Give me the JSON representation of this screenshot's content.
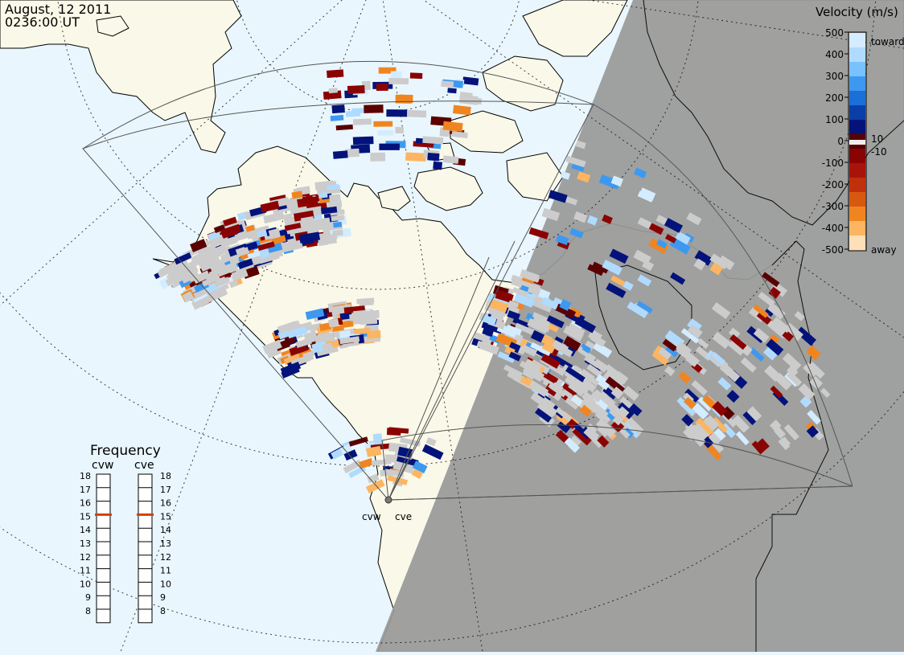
{
  "header": {
    "date": "August, 12 2011",
    "time": "0236:00 UT"
  },
  "colors": {
    "ocean_day": "#e9f6fd",
    "land_day": "#faf8e8",
    "night": "#999999",
    "ground_scatter": "#cccccc",
    "fov_outline": "#555555"
  },
  "velocity_scale": {
    "title": "Velocity (m/s)",
    "tick_labels": [
      "500",
      "400",
      "300",
      "200",
      "100",
      "0",
      "-100",
      "-200",
      "-300",
      "-400",
      "-500"
    ],
    "small_labels": [
      "10",
      "-10"
    ],
    "toward_label": "toward",
    "away_label": "away",
    "colors": [
      "#d4ecff",
      "#b0dbff",
      "#78c2ff",
      "#3d99f0",
      "#1b6fd8",
      "#0b3fa8",
      "#03137a",
      "#5a0000",
      "#8a0303",
      "#a8140a",
      "#c0300a",
      "#d85810",
      "#f08520",
      "#fcb560",
      "#fddfb8"
    ]
  },
  "frequency_panel": {
    "title": "Frequency",
    "radars": [
      {
        "name": "cvw",
        "selected": "15"
      },
      {
        "name": "cve",
        "selected": "15"
      }
    ],
    "levels": [
      "18",
      "17",
      "16",
      "15",
      "14",
      "13",
      "12",
      "11",
      "10",
      "9",
      "8"
    ]
  },
  "radar_sites": [
    {
      "label": "cvw"
    },
    {
      "label": "cve"
    }
  ]
}
